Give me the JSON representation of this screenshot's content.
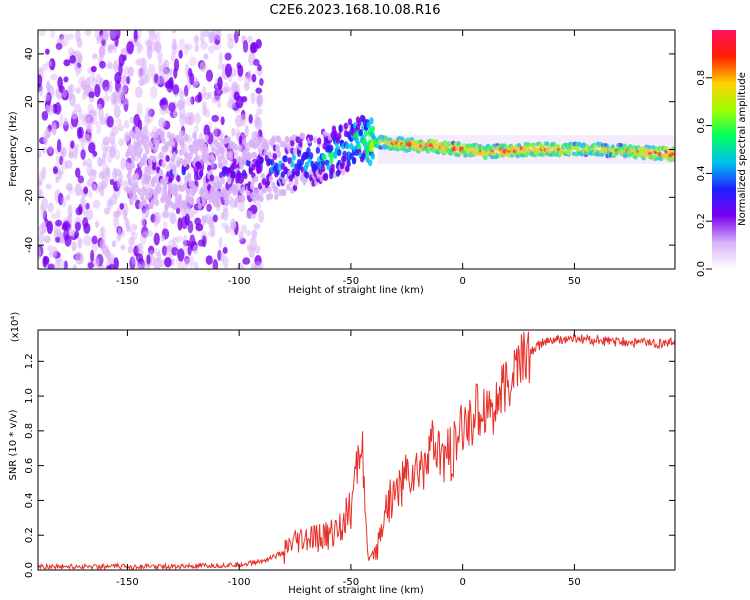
{
  "title": "C2E6.2023.168.10.08.R16",
  "chart_data": [
    {
      "type": "heatmap",
      "title": "C2E6.2023.168.10.08.R16",
      "xlabel": "Height of straight line (km)",
      "ylabel": "Frequency (Hz)",
      "xlim": [
        -190,
        95
      ],
      "ylim": [
        -50,
        50
      ],
      "xticks": [
        -150,
        -100,
        -50,
        0,
        50
      ],
      "yticks": [
        -40,
        -20,
        0,
        20,
        40
      ],
      "colorbar": {
        "label": "Normalized spectral amplitude",
        "range": [
          0.0,
          1.0
        ],
        "ticks": [
          0.0,
          0.2,
          0.4,
          0.6,
          0.8
        ],
        "colormap": [
          "#ffffff",
          "#d8b0f8",
          "#7a00f0",
          "#2020ff",
          "#00c0f0",
          "#00ff60",
          "#a0ff00",
          "#ffd000",
          "#ff2000",
          "#ff1060"
        ]
      },
      "ridge": {
        "x": [
          -190,
          -150,
          -120,
          -100,
          -80,
          -70,
          -60,
          -50,
          -45,
          -40,
          -35,
          -25,
          -10,
          0,
          10,
          30,
          60,
          95
        ],
        "freq": [
          -10,
          -8,
          -9,
          -10,
          -7,
          -5,
          -3,
          2,
          5,
          3,
          3,
          2,
          1,
          0,
          -1,
          0,
          0,
          -2
        ],
        "amplitude": [
          0.15,
          0.15,
          0.2,
          0.25,
          0.35,
          0.4,
          0.45,
          0.5,
          0.55,
          0.7,
          0.75,
          0.85,
          0.85,
          0.8,
          0.8,
          0.85,
          0.7,
          0.9
        ]
      },
      "noise_extent_x": [
        -190,
        -90
      ]
    },
    {
      "type": "line",
      "title": "",
      "xlabel": "Height of straight line (km)",
      "ylabel": "SNR (10 * v/v)",
      "y_multiplier": "(x10⁴)",
      "xlim": [
        -190,
        95
      ],
      "ylim": [
        0.0,
        1.38
      ],
      "xticks": [
        -150,
        -100,
        -50,
        0,
        50
      ],
      "yticks": [
        0.0,
        0.2,
        0.4,
        0.6,
        0.8,
        1.0,
        1.2
      ],
      "color": "#e8302a",
      "series": [
        {
          "x": [
            -190,
            -150,
            -120,
            -100,
            -90,
            -80,
            -75,
            -70,
            -65,
            -60,
            -55,
            -50,
            -47,
            -45,
            -43,
            -42,
            -40,
            -38,
            -35,
            -30,
            -25,
            -20,
            -15,
            -10,
            -5,
            0,
            5,
            10,
            15,
            20,
            25,
            30,
            35,
            40,
            50,
            60,
            70,
            80,
            90,
            95
          ],
          "values": [
            0.02,
            0.02,
            0.02,
            0.03,
            0.05,
            0.1,
            0.15,
            0.17,
            0.18,
            0.2,
            0.25,
            0.35,
            0.6,
            0.8,
            0.15,
            0.05,
            0.1,
            0.12,
            0.35,
            0.45,
            0.55,
            0.55,
            0.7,
            0.65,
            0.65,
            0.8,
            0.9,
            0.95,
            0.95,
            1.05,
            1.2,
            1.25,
            1.3,
            1.32,
            1.33,
            1.32,
            1.31,
            1.31,
            1.3,
            1.31
          ]
        }
      ]
    }
  ]
}
